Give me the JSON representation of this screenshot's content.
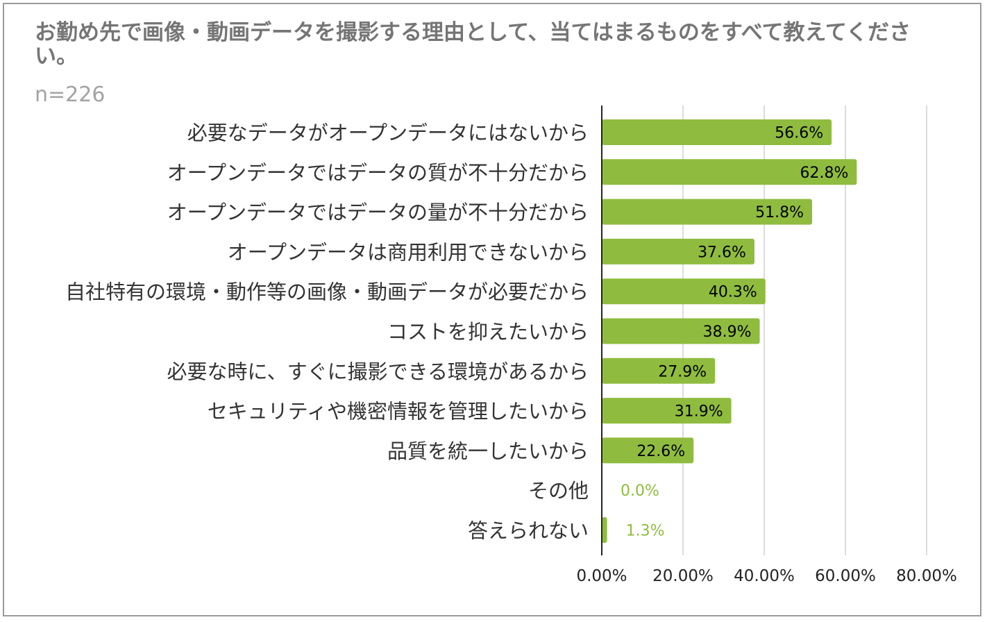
{
  "chart_data": {
    "type": "bar",
    "orientation": "horizontal",
    "title": "お勤め先で画像・動画データを撮影する理由として、当てはまるものをすべて教えてください。",
    "subtitle": "n=226",
    "xlabel": "",
    "ylabel": "",
    "xlim": [
      0,
      80
    ],
    "grid": true,
    "bar_color": "#8fbc3f",
    "label_color_inside": "#000000",
    "label_color_outside": "#8fbc3f",
    "axis_ticks": [
      "0.00%",
      "20.00%",
      "40.00%",
      "60.00%",
      "80.00%"
    ],
    "tick_values": [
      0,
      20,
      40,
      60,
      80
    ],
    "categories": [
      "必要なデータがオープンデータにはないから",
      "オープンデータではデータの質が不十分だから",
      "オープンデータではデータの量が不十分だから",
      "オープンデータは商用利用できないから",
      "自社特有の環境・動作等の画像・動画データが必要だから",
      "コストを抑えたいから",
      "必要な時に、すぐに撮影できる環境があるから",
      "セキュリティや機密情報を管理したいから",
      "品質を統一したいから",
      "その他",
      "答えられない"
    ],
    "values": [
      56.6,
      62.8,
      51.8,
      37.6,
      40.3,
      38.9,
      27.9,
      31.9,
      22.6,
      0.0,
      1.3
    ],
    "value_labels": [
      "56.6%",
      "62.8%",
      "51.8%",
      "37.6%",
      "40.3%",
      "38.9%",
      "27.9%",
      "31.9%",
      "22.6%",
      "0.0%",
      "1.3%"
    ]
  }
}
